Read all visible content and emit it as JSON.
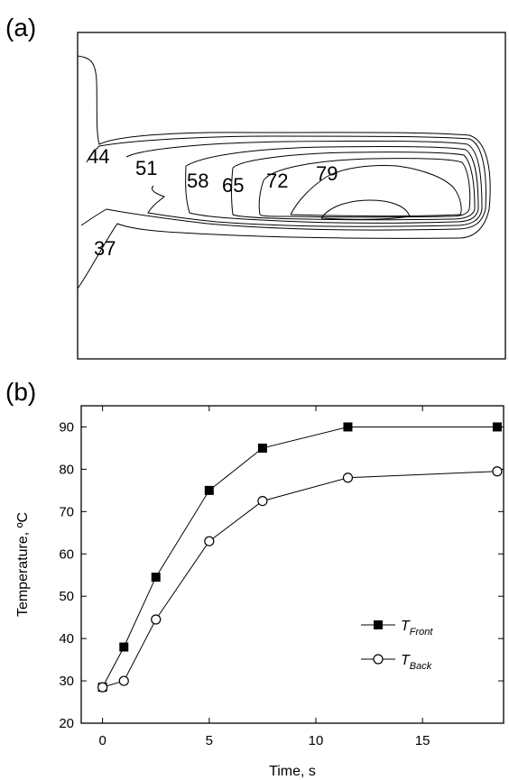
{
  "panel_a": {
    "label": "(a)",
    "contour_levels": [
      "44",
      "51",
      "58",
      "65",
      "72",
      "79",
      "37"
    ]
  },
  "panel_b": {
    "label": "(b)"
  },
  "chart_data": {
    "type": "line",
    "xlabel": "Time, s",
    "ylabel": "Temperature, ºC",
    "xlim": [
      -1,
      18.8
    ],
    "ylim": [
      20,
      95
    ],
    "xticks": [
      0,
      5,
      10,
      15
    ],
    "yticks": [
      20,
      30,
      40,
      50,
      60,
      70,
      80,
      90
    ],
    "legend_position": "bottom-right",
    "series": [
      {
        "name": "T",
        "subscript": "Front",
        "marker": "filled-square",
        "x": [
          0,
          1,
          2.5,
          5,
          7.5,
          11.5,
          18.5
        ],
        "y": [
          28.5,
          38,
          54.5,
          75,
          85,
          90,
          90
        ]
      },
      {
        "name": "T",
        "subscript": "Back",
        "marker": "open-circle",
        "x": [
          0,
          1,
          2.5,
          5,
          7.5,
          11.5,
          18.5
        ],
        "y": [
          28.5,
          30,
          44.5,
          63,
          72.5,
          78,
          79.5
        ]
      }
    ]
  }
}
